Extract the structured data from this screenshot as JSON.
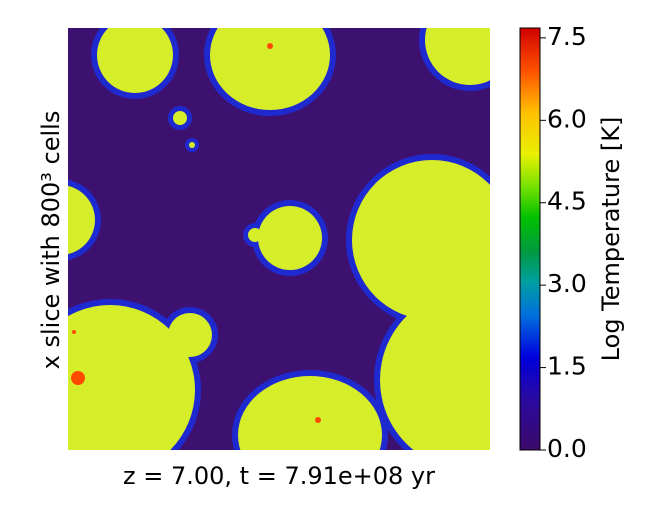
{
  "ylabel": "x slice with 800³ cells",
  "xlabel": "z = 7.00, t = 7.91e+08 yr",
  "colorbar": {
    "label": "Log Temperature [K]",
    "lim": [
      0,
      7.68
    ],
    "ticks": [
      {
        "value": 0,
        "label": "0.0"
      },
      {
        "value": 1.5,
        "label": "1.5"
      },
      {
        "value": 3,
        "label": "3.0"
      },
      {
        "value": 4.5,
        "label": "4.5"
      },
      {
        "value": 6,
        "label": "6.0"
      },
      {
        "value": 7.5,
        "label": "7.5"
      }
    ]
  }
}
